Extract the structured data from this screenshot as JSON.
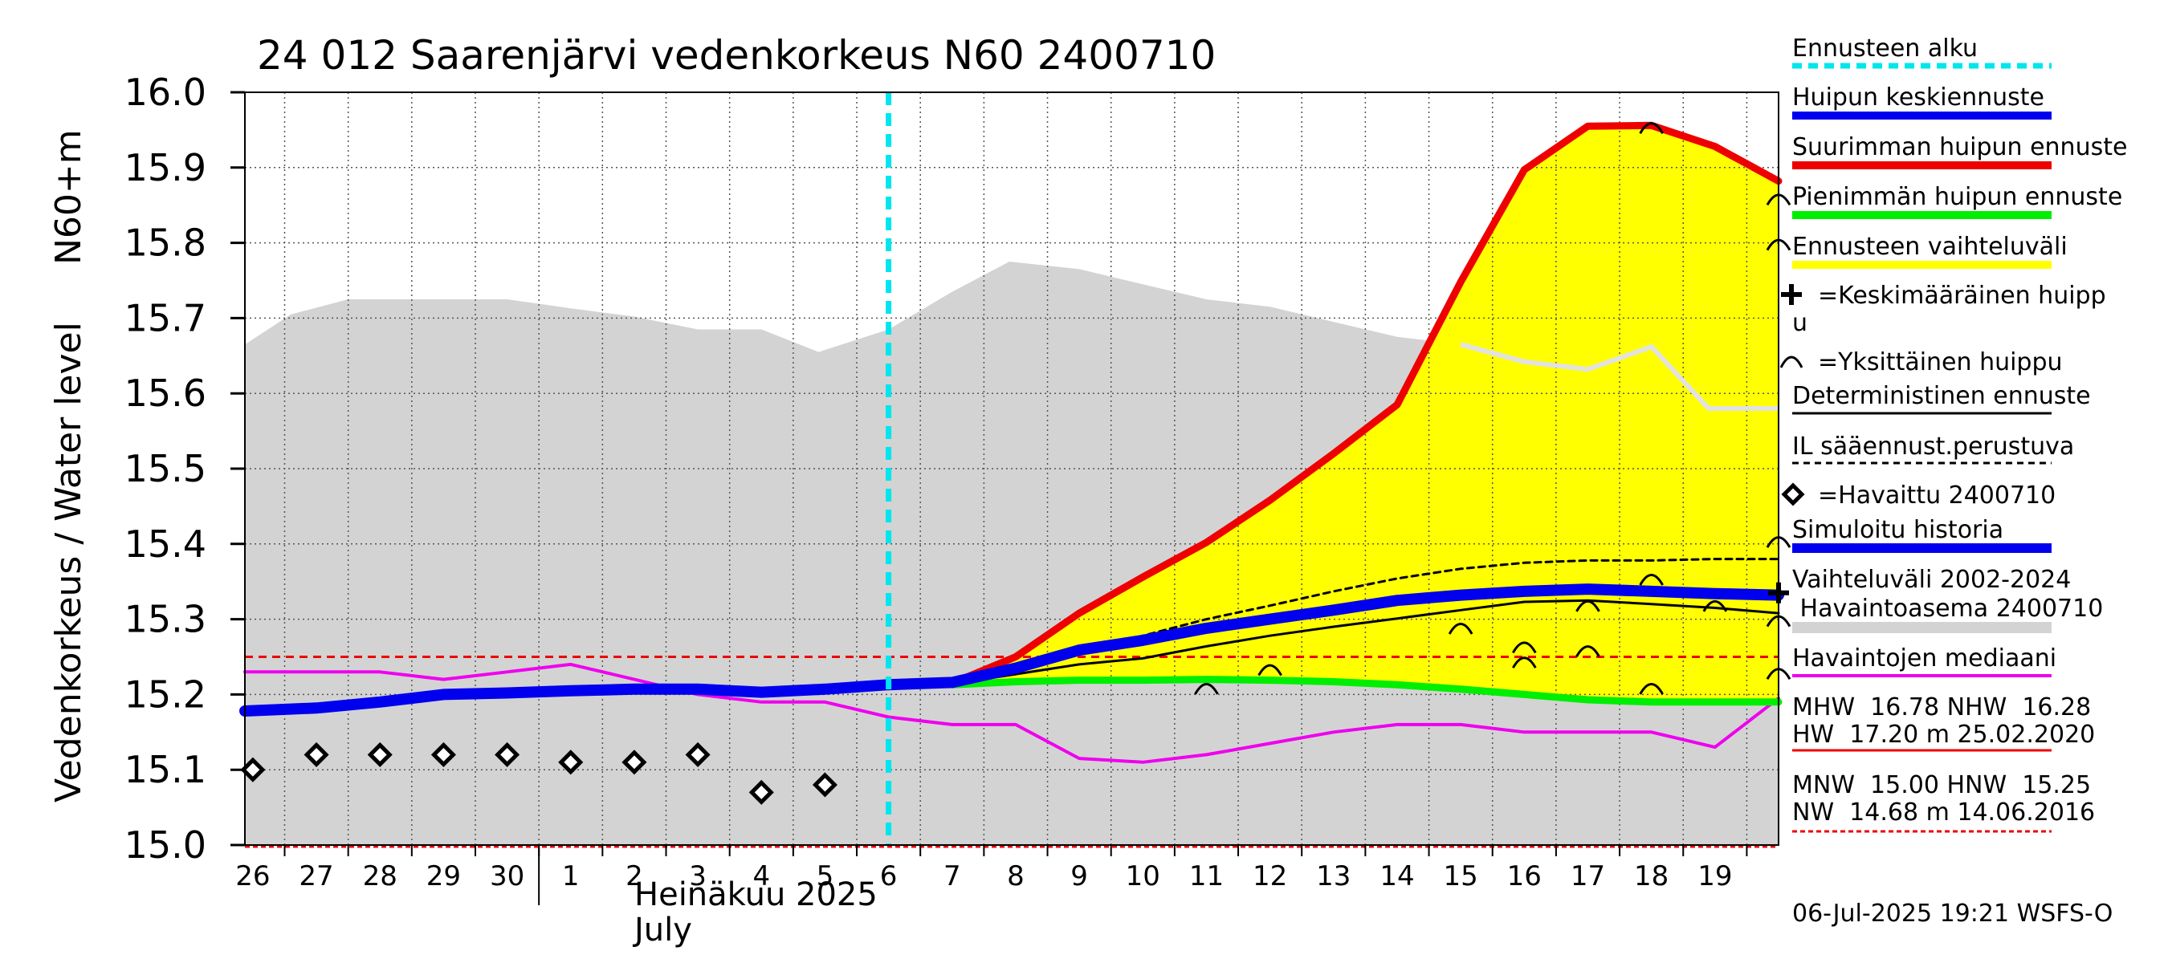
{
  "chart_data": {
    "type": "line",
    "title": "24 012 Saarenjärvi vedenkorkeus N60 2400710",
    "ylabel_main": "Vedenkorkeus / Water level",
    "ylabel_unit": "N60+m",
    "ylim": [
      15.0,
      16.0
    ],
    "y_ticks": [
      "15.0",
      "15.1",
      "15.2",
      "15.3",
      "15.4",
      "15.5",
      "15.6",
      "15.7",
      "15.8",
      "15.9",
      "16.0"
    ],
    "x_range": [
      25.875,
      50.0
    ],
    "x_ticks": [
      {
        "x": 26,
        "label": "26"
      },
      {
        "x": 27,
        "label": "27"
      },
      {
        "x": 28,
        "label": "28"
      },
      {
        "x": 29,
        "label": "29"
      },
      {
        "x": 30,
        "label": "30"
      },
      {
        "x": 31,
        "label": "1"
      },
      {
        "x": 32,
        "label": "2"
      },
      {
        "x": 33,
        "label": "3"
      },
      {
        "x": 34,
        "label": "4"
      },
      {
        "x": 35,
        "label": "5"
      },
      {
        "x": 36,
        "label": "6"
      },
      {
        "x": 37,
        "label": "7"
      },
      {
        "x": 38,
        "label": "8"
      },
      {
        "x": 39,
        "label": "9"
      },
      {
        "x": 40,
        "label": "10"
      },
      {
        "x": 41,
        "label": "11"
      },
      {
        "x": 42,
        "label": "12"
      },
      {
        "x": 43,
        "label": "13"
      },
      {
        "x": 44,
        "label": "14"
      },
      {
        "x": 45,
        "label": "15"
      },
      {
        "x": 46,
        "label": "16"
      },
      {
        "x": 47,
        "label": "17"
      },
      {
        "x": 48,
        "label": "18"
      },
      {
        "x": 49,
        "label": "19"
      }
    ],
    "month_label_fi": "Heinäkuu  2025",
    "month_label_en": "July",
    "forecast_start_x": 36.0,
    "median_level": 15.25,
    "variation_range_upper": [
      [
        25.875,
        15.665
      ],
      [
        26.6,
        15.705
      ],
      [
        27.5,
        15.725
      ],
      [
        29.0,
        15.725
      ],
      [
        30.0,
        15.725
      ],
      [
        31.0,
        15.713
      ],
      [
        32.0,
        15.702
      ],
      [
        33.0,
        15.685
      ],
      [
        34.0,
        15.685
      ],
      [
        34.9,
        15.655
      ],
      [
        36.0,
        15.685
      ],
      [
        37.0,
        15.735
      ],
      [
        37.9,
        15.775
      ],
      [
        39.0,
        15.765
      ],
      [
        40.0,
        15.745
      ],
      [
        41.0,
        15.725
      ],
      [
        42.0,
        15.715
      ],
      [
        43.0,
        15.695
      ],
      [
        44.0,
        15.675
      ],
      [
        45.0,
        15.665
      ],
      [
        46.0,
        15.642
      ],
      [
        47.0,
        15.632
      ],
      [
        48.0,
        15.662
      ],
      [
        48.9,
        15.58
      ],
      [
        50.0,
        15.58
      ]
    ],
    "median_history_line": [
      [
        45.0,
        15.665
      ],
      [
        46.0,
        15.642
      ],
      [
        47.0,
        15.632
      ],
      [
        48.0,
        15.662
      ],
      [
        48.9,
        15.58
      ],
      [
        50.0,
        15.58
      ]
    ],
    "forecast_band_upper": [
      [
        37.0,
        15.215
      ],
      [
        38.0,
        15.25
      ],
      [
        39.0,
        15.308
      ],
      [
        40.0,
        15.356
      ],
      [
        41.0,
        15.402
      ],
      [
        42.0,
        15.458
      ],
      [
        43.0,
        15.52
      ],
      [
        44.0,
        15.585
      ],
      [
        45.0,
        15.748
      ],
      [
        46.0,
        15.897
      ],
      [
        47.0,
        15.955
      ],
      [
        48.0,
        15.956
      ],
      [
        49.0,
        15.928
      ],
      [
        50.0,
        15.882
      ]
    ],
    "forecast_band_lower": [
      [
        37.0,
        15.213
      ],
      [
        38.0,
        15.217
      ],
      [
        39.0,
        15.219
      ],
      [
        40.0,
        15.219
      ],
      [
        41.0,
        15.22
      ],
      [
        42.0,
        15.219
      ],
      [
        43.0,
        15.217
      ],
      [
        44.0,
        15.213
      ],
      [
        45.0,
        15.207
      ],
      [
        46.0,
        15.2
      ],
      [
        47.0,
        15.193
      ],
      [
        48.0,
        15.19
      ],
      [
        49.0,
        15.19
      ],
      [
        50.0,
        15.19
      ]
    ],
    "series": [
      {
        "name": "Simuloitu historia / Huipun keskiennuste",
        "color": "#0000ee",
        "points": [
          [
            25.875,
            15.178
          ],
          [
            27.0,
            15.182
          ],
          [
            28.0,
            15.19
          ],
          [
            29.0,
            15.2
          ],
          [
            30.0,
            15.202
          ],
          [
            31.0,
            15.205
          ],
          [
            32.0,
            15.207
          ],
          [
            33.0,
            15.207
          ],
          [
            34.0,
            15.203
          ],
          [
            35.0,
            15.207
          ],
          [
            36.0,
            15.213
          ],
          [
            37.0,
            15.216
          ],
          [
            38.0,
            15.235
          ],
          [
            39.0,
            15.259
          ],
          [
            40.0,
            15.272
          ],
          [
            41.0,
            15.288
          ],
          [
            42.0,
            15.3
          ],
          [
            43.0,
            15.312
          ],
          [
            44.0,
            15.325
          ],
          [
            45.0,
            15.332
          ],
          [
            46.0,
            15.337
          ],
          [
            47.0,
            15.34
          ],
          [
            48.0,
            15.337
          ],
          [
            49.0,
            15.334
          ],
          [
            50.0,
            15.332
          ]
        ]
      },
      {
        "name": "Suurimman huipun ennuste",
        "color": "#ee0000",
        "points": [
          [
            37.0,
            15.215
          ],
          [
            38.0,
            15.25
          ],
          [
            39.0,
            15.308
          ],
          [
            40.0,
            15.356
          ],
          [
            41.0,
            15.402
          ],
          [
            42.0,
            15.458
          ],
          [
            43.0,
            15.52
          ],
          [
            44.0,
            15.585
          ],
          [
            45.0,
            15.748
          ],
          [
            46.0,
            15.897
          ],
          [
            47.0,
            15.955
          ],
          [
            48.0,
            15.956
          ],
          [
            49.0,
            15.928
          ],
          [
            50.0,
            15.882
          ]
        ]
      },
      {
        "name": "Pienimmän huipun ennuste",
        "color": "#00ee00",
        "points": [
          [
            37.0,
            15.213
          ],
          [
            38.0,
            15.217
          ],
          [
            39.0,
            15.219
          ],
          [
            40.0,
            15.219
          ],
          [
            41.0,
            15.22
          ],
          [
            42.0,
            15.219
          ],
          [
            43.0,
            15.217
          ],
          [
            44.0,
            15.213
          ],
          [
            45.0,
            15.207
          ],
          [
            46.0,
            15.2
          ],
          [
            47.0,
            15.193
          ],
          [
            48.0,
            15.19
          ],
          [
            49.0,
            15.19
          ],
          [
            50.0,
            15.19
          ]
        ]
      },
      {
        "name": "Deterministinen ennuste",
        "color": "#000000",
        "points": [
          [
            37.0,
            15.214
          ],
          [
            38.0,
            15.227
          ],
          [
            39.0,
            15.24
          ],
          [
            40.0,
            15.248
          ],
          [
            41.0,
            15.264
          ],
          [
            42.0,
            15.278
          ],
          [
            43.0,
            15.29
          ],
          [
            44.0,
            15.301
          ],
          [
            45.0,
            15.312
          ],
          [
            46.0,
            15.323
          ],
          [
            47.0,
            15.325
          ],
          [
            48.0,
            15.32
          ],
          [
            49.0,
            15.315
          ],
          [
            50.0,
            15.308
          ]
        ]
      },
      {
        "name": "IL sääennust.perustuva",
        "color": "#000000",
        "points": [
          [
            37.0,
            15.215
          ],
          [
            38.0,
            15.232
          ],
          [
            39.0,
            15.258
          ],
          [
            40.0,
            15.278
          ],
          [
            41.0,
            15.3
          ],
          [
            42.0,
            15.318
          ],
          [
            43.0,
            15.337
          ],
          [
            44.0,
            15.354
          ],
          [
            45.0,
            15.367
          ],
          [
            46.0,
            15.375
          ],
          [
            47.0,
            15.378
          ],
          [
            48.0,
            15.378
          ],
          [
            49.0,
            15.38
          ],
          [
            50.0,
            15.38
          ]
        ]
      },
      {
        "name": "Havaintojen mediaani",
        "color": "#ee00ee",
        "points": [
          [
            25.875,
            15.23
          ],
          [
            27.0,
            15.23
          ],
          [
            28.0,
            15.23
          ],
          [
            29.0,
            15.22
          ],
          [
            30.0,
            15.23
          ],
          [
            31.0,
            15.24
          ],
          [
            32.0,
            15.22
          ],
          [
            33.0,
            15.2
          ],
          [
            34.0,
            15.19
          ],
          [
            35.0,
            15.19
          ],
          [
            36.0,
            15.17
          ],
          [
            37.0,
            15.16
          ],
          [
            38.0,
            15.16
          ],
          [
            39.0,
            15.115
          ],
          [
            40.0,
            15.11
          ],
          [
            41.0,
            15.12
          ],
          [
            42.0,
            15.135
          ],
          [
            43.0,
            15.15
          ],
          [
            44.0,
            15.16
          ],
          [
            45.0,
            15.16
          ],
          [
            46.0,
            15.15
          ],
          [
            47.0,
            15.15
          ],
          [
            48.0,
            15.15
          ],
          [
            49.0,
            15.13
          ],
          [
            50.0,
            15.195
          ]
        ]
      }
    ],
    "observed": [
      [
        26.0,
        15.1
      ],
      [
        27.0,
        15.12
      ],
      [
        28.0,
        15.12
      ],
      [
        29.0,
        15.12
      ],
      [
        30.0,
        15.12
      ],
      [
        31.0,
        15.11
      ],
      [
        32.0,
        15.11
      ],
      [
        33.0,
        15.12
      ],
      [
        34.0,
        15.07
      ],
      [
        35.0,
        15.08
      ]
    ],
    "single_peaks": [
      [
        41.0,
        15.21
      ],
      [
        42.0,
        15.235
      ],
      [
        45.0,
        15.29
      ],
      [
        46.0,
        15.265
      ],
      [
        46.0,
        15.245
      ],
      [
        47.0,
        15.32
      ],
      [
        47.0,
        15.26
      ],
      [
        48.0,
        15.355
      ],
      [
        48.0,
        15.21
      ],
      [
        48.0,
        15.955
      ],
      [
        49.0,
        15.32
      ],
      [
        50.0,
        15.86
      ],
      [
        50.0,
        15.8
      ],
      [
        50.0,
        15.405
      ],
      [
        50.0,
        15.3
      ],
      [
        50.0,
        15.23
      ]
    ],
    "mean_peak": [
      50.0,
      15.335
    ],
    "legend": {
      "items": [
        {
          "key": "forecast_start",
          "label": "Ennusteen alku",
          "color": "#00e5ee"
        },
        {
          "key": "mean_forecast",
          "label": "Huipun keskiennuste",
          "color": "#0000ee"
        },
        {
          "key": "max_forecast",
          "label": "Suurimman huipun ennuste",
          "color": "#ee0000"
        },
        {
          "key": "min_forecast",
          "label": "Pienimmän huipun ennuste",
          "color": "#00ee00"
        },
        {
          "key": "range",
          "label": "Ennusteen vaihteluväli",
          "color": "#ffff00"
        },
        {
          "key": "mean_peak",
          "label": "=Keskimääräinen huipp",
          "label2": "u"
        },
        {
          "key": "single_peak",
          "label": "=Yksittäinen huippu"
        },
        {
          "key": "deterministic",
          "label": "Deterministinen ennuste",
          "color": "#000000"
        },
        {
          "key": "il",
          "label": "IL sääennust.perustuva",
          "color": "#000000"
        },
        {
          "key": "observed",
          "label": "=Havaittu 2400710"
        },
        {
          "key": "simulated",
          "label": "Simuloitu historia",
          "color": "#0000ee"
        },
        {
          "key": "variation",
          "label": "Vaihteluväli 2002-2024",
          "label2": " Havaintoasema 2400710",
          "color": "#d3d3d3"
        },
        {
          "key": "median",
          "label": "Havaintojen mediaani",
          "color": "#ee00ee"
        }
      ],
      "stats": {
        "line1": "MHW  16.78 NHW  16.28",
        "line2": "HW  17.20 m 25.02.2020",
        "line3": "MNW  15.00 HNW  15.25",
        "line4": "NW  14.68 m 14.06.2016"
      }
    },
    "footer": "06-Jul-2025 19:21 WSFS-O"
  }
}
